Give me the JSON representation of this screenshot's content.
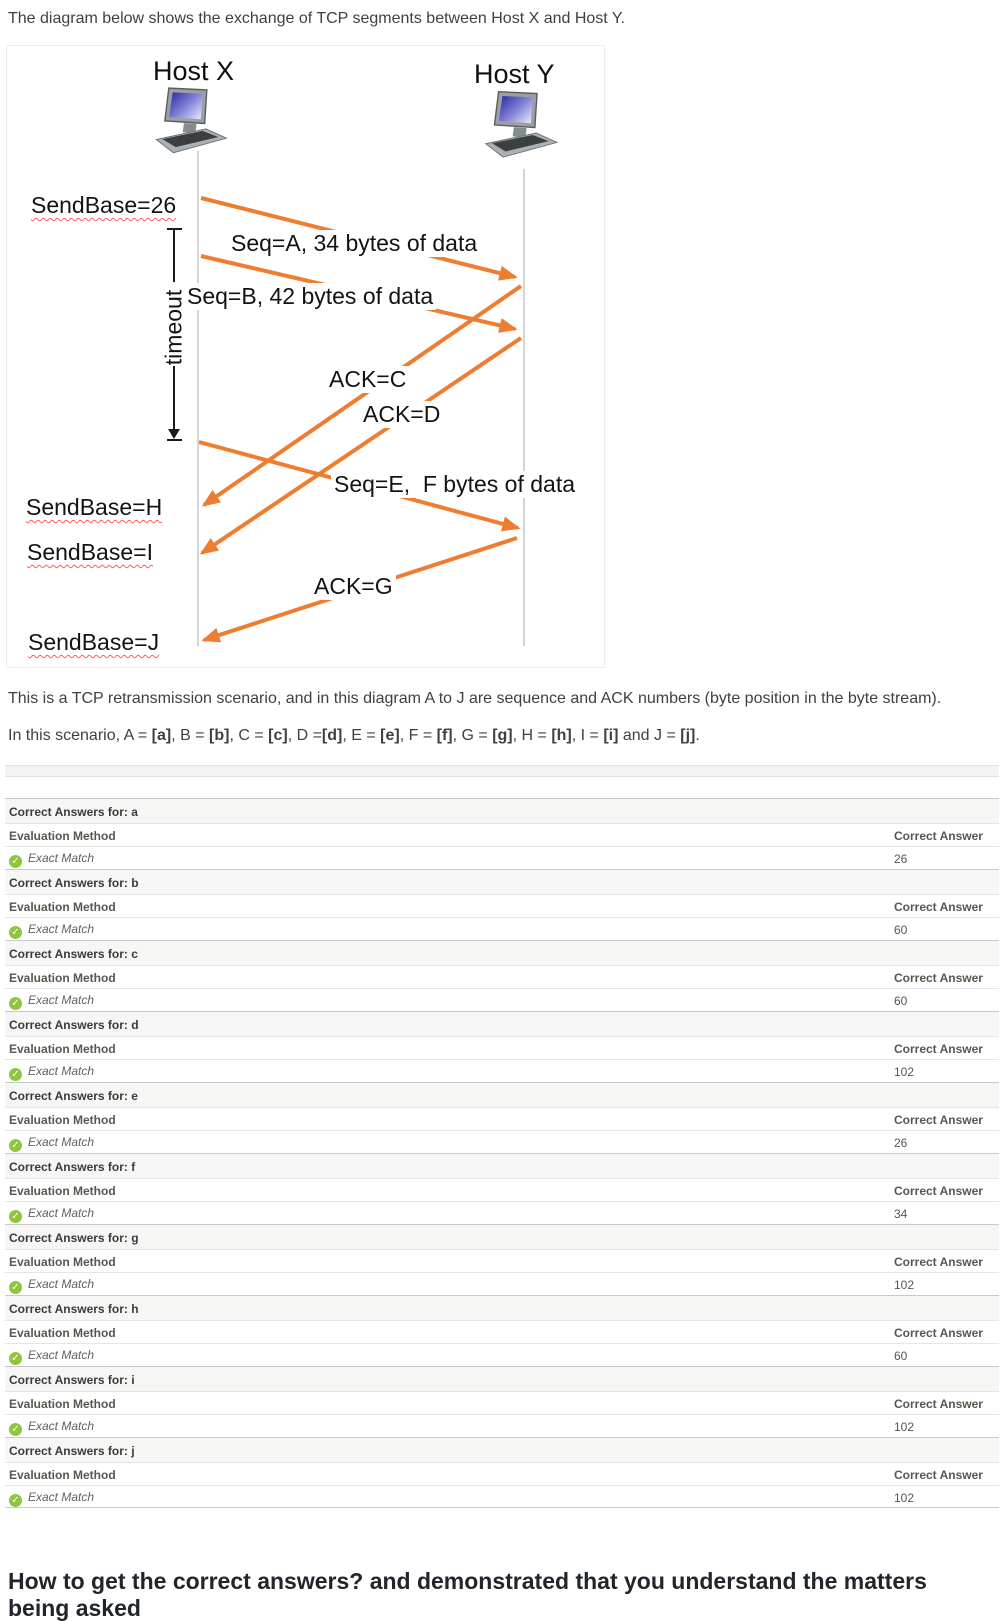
{
  "page": {
    "top_heading": "The diagram below shows the exchange of TCP segments between Host X and Host Y.",
    "para1": "This is a TCP retransmission scenario, and in this diagram A to J are sequence and ACK numbers (byte position in the byte stream).",
    "para2_segments": [
      {
        "text": "In this scenario, A = "
      },
      {
        "text": "[a]",
        "bold": true
      },
      {
        "text": ", B = "
      },
      {
        "text": "[b]",
        "bold": true
      },
      {
        "text": ", C = "
      },
      {
        "text": "[c]",
        "bold": true
      },
      {
        "text": ", D ="
      },
      {
        "text": "[d]",
        "bold": true
      },
      {
        "text": ", E = "
      },
      {
        "text": "[e]",
        "bold": true
      },
      {
        "text": ", F = "
      },
      {
        "text": "[f]",
        "bold": true
      },
      {
        "text": ", G = "
      },
      {
        "text": "[g]",
        "bold": true
      },
      {
        "text": ", H = "
      },
      {
        "text": "[h]",
        "bold": true
      },
      {
        "text": ", I = "
      },
      {
        "text": "[i]",
        "bold": true
      },
      {
        "text": " and J = "
      },
      {
        "text": "[j]",
        "bold": true
      },
      {
        "text": "."
      }
    ],
    "bottom_heading": "How to get the correct answers? and demonstrated that you understand the matters being asked"
  },
  "diagram": {
    "host_x": "Host X",
    "host_y": "Host Y",
    "timeout_label": "timeout",
    "messages": [
      {
        "id": "seq-a",
        "label": "Seq=A, 34 bytes of data",
        "from": "X",
        "to": "Y"
      },
      {
        "id": "seq-b",
        "label": "Seq=B, 42 bytes of data",
        "from": "X",
        "to": "Y"
      },
      {
        "id": "ack-c",
        "label": "ACK=C",
        "from": "Y",
        "to": "X"
      },
      {
        "id": "ack-d",
        "label": "ACK=D",
        "from": "Y",
        "to": "X"
      },
      {
        "id": "seq-e",
        "label": "Seq=E,  F bytes of data",
        "from": "X",
        "to": "Y"
      },
      {
        "id": "ack-g",
        "label": "ACK=G",
        "from": "Y",
        "to": "X"
      }
    ],
    "sendbase_labels": [
      {
        "id": "sb-26",
        "text": "SendBase=26"
      },
      {
        "id": "sb-h",
        "text": "SendBase=H"
      },
      {
        "id": "sb-i",
        "text": "SendBase=I"
      },
      {
        "id": "sb-j",
        "text": "SendBase=J"
      }
    ],
    "colors": {
      "arrow": "#ED7D31",
      "squiggle": "#FF5A5A",
      "timeline": "#D4D4D4"
    }
  },
  "answers_table": {
    "header_prefix": "Correct Answers for:",
    "eval_method_label": "Evaluation Method",
    "correct_answer_label": "Correct Answer",
    "exact_match_label": "Exact Match",
    "check_icon": "check-circle-icon",
    "check_color": "#8DC63F",
    "items": [
      {
        "key": "a",
        "correct_answer": "26"
      },
      {
        "key": "b",
        "correct_answer": "60"
      },
      {
        "key": "c",
        "correct_answer": "60"
      },
      {
        "key": "d",
        "correct_answer": "102"
      },
      {
        "key": "e",
        "correct_answer": "26"
      },
      {
        "key": "f",
        "correct_answer": "34"
      },
      {
        "key": "g",
        "correct_answer": "102"
      },
      {
        "key": "h",
        "correct_answer": "60"
      },
      {
        "key": "i",
        "correct_answer": "102"
      },
      {
        "key": "j",
        "correct_answer": "102"
      }
    ]
  }
}
